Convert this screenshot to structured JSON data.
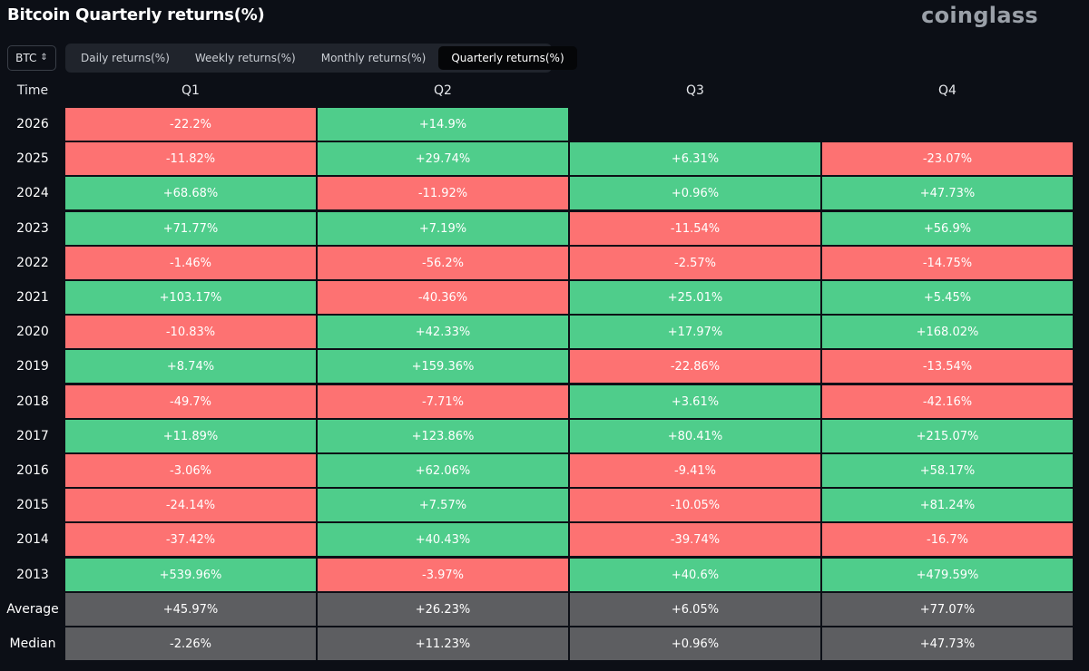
{
  "title": "Bitcoin Quarterly returns(%)",
  "brand": "coinglass",
  "asset_selector": {
    "value": "BTC",
    "icon": "up-down-chevron-icon"
  },
  "tabs": [
    {
      "label": "Daily returns(%)",
      "active": false
    },
    {
      "label": "Weekly returns(%)",
      "active": false
    },
    {
      "label": "Monthly returns(%)",
      "active": false
    },
    {
      "label": "Quarterly returns(%)",
      "active": true
    }
  ],
  "colors": {
    "positive": "#4fcd8b",
    "negative": "#fd7272",
    "summary": "#5d5e61",
    "background": "#0c0f16"
  },
  "chart_data": {
    "type": "table",
    "title": "Bitcoin Quarterly returns(%)",
    "row_header": "Time",
    "columns": [
      "Q1",
      "Q2",
      "Q3",
      "Q4"
    ],
    "rows": [
      {
        "label": "2026",
        "values": [
          "-22.2%",
          "+14.9%",
          "",
          ""
        ]
      },
      {
        "label": "2025",
        "values": [
          "-11.82%",
          "+29.74%",
          "+6.31%",
          "-23.07%"
        ]
      },
      {
        "label": "2024",
        "values": [
          "+68.68%",
          "-11.92%",
          "+0.96%",
          "+47.73%"
        ]
      },
      {
        "label": "2023",
        "values": [
          "+71.77%",
          "+7.19%",
          "-11.54%",
          "+56.9%"
        ]
      },
      {
        "label": "2022",
        "values": [
          "-1.46%",
          "-56.2%",
          "-2.57%",
          "-14.75%"
        ]
      },
      {
        "label": "2021",
        "values": [
          "+103.17%",
          "-40.36%",
          "+25.01%",
          "+5.45%"
        ]
      },
      {
        "label": "2020",
        "values": [
          "-10.83%",
          "+42.33%",
          "+17.97%",
          "+168.02%"
        ]
      },
      {
        "label": "2019",
        "values": [
          "+8.74%",
          "+159.36%",
          "-22.86%",
          "-13.54%"
        ]
      },
      {
        "label": "2018",
        "values": [
          "-49.7%",
          "-7.71%",
          "+3.61%",
          "-42.16%"
        ]
      },
      {
        "label": "2017",
        "values": [
          "+11.89%",
          "+123.86%",
          "+80.41%",
          "+215.07%"
        ]
      },
      {
        "label": "2016",
        "values": [
          "-3.06%",
          "+62.06%",
          "-9.41%",
          "+58.17%"
        ]
      },
      {
        "label": "2015",
        "values": [
          "-24.14%",
          "+7.57%",
          "-10.05%",
          "+81.24%"
        ]
      },
      {
        "label": "2014",
        "values": [
          "-37.42%",
          "+40.43%",
          "-39.74%",
          "-16.7%"
        ]
      },
      {
        "label": "2013",
        "values": [
          "+539.96%",
          "-3.97%",
          "+40.6%",
          "+479.59%"
        ]
      }
    ],
    "summary": [
      {
        "label": "Average",
        "values": [
          "+45.97%",
          "+26.23%",
          "+6.05%",
          "+77.07%"
        ]
      },
      {
        "label": "Median",
        "values": [
          "-2.26%",
          "+11.23%",
          "+0.96%",
          "+47.73%"
        ]
      }
    ]
  }
}
